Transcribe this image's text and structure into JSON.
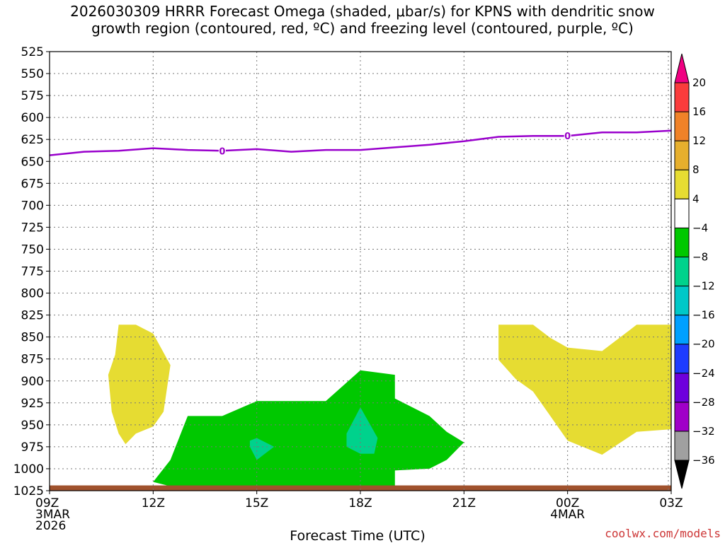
{
  "title_line1": "2026030309 HRRR Forecast Omega (shaded, μbar/s) for KPNS with dendritic snow",
  "title_line2": "growth region (contoured, red, ºC) and freezing level (contoured, purple, ºC)",
  "credit": "coolwx.com/models",
  "chart_data": {
    "type": "area",
    "xlabel": "Forecast Time (UTC)",
    "x_range_hours": [
      0,
      18
    ],
    "y_range_hpa": [
      525,
      1025
    ],
    "y_inverted": true,
    "grid": true,
    "y_ticks": [
      525,
      550,
      575,
      600,
      625,
      650,
      675,
      700,
      725,
      750,
      775,
      800,
      825,
      850,
      875,
      900,
      925,
      950,
      975,
      1000,
      1025
    ],
    "x_ticks": [
      {
        "hour": 0,
        "lines": [
          "09Z",
          "3MAR",
          "2026"
        ]
      },
      {
        "hour": 3,
        "lines": [
          "12Z"
        ]
      },
      {
        "hour": 6,
        "lines": [
          "15Z"
        ]
      },
      {
        "hour": 9,
        "lines": [
          "18Z"
        ]
      },
      {
        "hour": 12,
        "lines": [
          "21Z"
        ]
      },
      {
        "hour": 15,
        "lines": [
          "00Z",
          "4MAR"
        ]
      },
      {
        "hour": 18,
        "lines": [
          "03Z"
        ]
      }
    ],
    "freezing_level": {
      "label": "0",
      "color": "#9900cc",
      "label_points": [
        [
          5.0,
          638
        ],
        [
          15.0,
          621
        ]
      ],
      "points": [
        [
          0,
          643
        ],
        [
          1,
          639
        ],
        [
          2,
          638
        ],
        [
          3,
          635
        ],
        [
          4,
          637
        ],
        [
          5,
          638
        ],
        [
          6,
          636
        ],
        [
          7,
          639
        ],
        [
          8,
          637
        ],
        [
          9,
          637
        ],
        [
          10,
          634
        ],
        [
          11,
          631
        ],
        [
          12,
          627
        ],
        [
          13,
          622
        ],
        [
          14,
          621
        ],
        [
          15,
          621
        ],
        [
          16,
          617
        ],
        [
          17,
          617
        ],
        [
          18,
          615
        ]
      ]
    },
    "omega_regions": [
      {
        "value_range": [
          4,
          8
        ],
        "color": "#e6dc32",
        "points": [
          [
            2.0,
            836
          ],
          [
            2.5,
            836
          ],
          [
            3.0,
            846
          ],
          [
            3.5,
            882
          ],
          [
            3.3,
            935
          ],
          [
            3.0,
            952
          ],
          [
            2.5,
            960
          ],
          [
            2.2,
            972
          ],
          [
            2.0,
            960
          ],
          [
            1.8,
            935
          ],
          [
            1.7,
            893
          ],
          [
            1.9,
            870
          ]
        ]
      },
      {
        "value_range": [
          4,
          8
        ],
        "color": "#e6dc32",
        "points": [
          [
            13.0,
            836
          ],
          [
            14.0,
            836
          ],
          [
            14.5,
            851
          ],
          [
            15.0,
            862
          ],
          [
            16.0,
            866
          ],
          [
            17.0,
            836
          ],
          [
            18.0,
            836
          ],
          [
            18.0,
            955
          ],
          [
            17.0,
            958
          ],
          [
            16.0,
            984
          ],
          [
            15.0,
            968
          ],
          [
            14.5,
            940
          ],
          [
            14.0,
            912
          ],
          [
            13.5,
            898
          ],
          [
            13.0,
            876
          ]
        ]
      },
      {
        "value_range": [
          -8,
          -4
        ],
        "color": "#00c800",
        "points": [
          [
            3.0,
            1015
          ],
          [
            3.5,
            990
          ],
          [
            4.0,
            940
          ],
          [
            5.0,
            940
          ],
          [
            6.0,
            923
          ],
          [
            7.0,
            923
          ],
          [
            8.0,
            923
          ],
          [
            9.0,
            888
          ],
          [
            10.0,
            893
          ],
          [
            10.0,
            920
          ],
          [
            11.0,
            940
          ],
          [
            11.5,
            958
          ],
          [
            12.0,
            970
          ],
          [
            11.5,
            990
          ],
          [
            11.0,
            1000
          ],
          [
            10.0,
            1002
          ],
          [
            10.0,
            1020
          ],
          [
            9.0,
            1020
          ],
          [
            8.0,
            1020
          ],
          [
            7.0,
            1020
          ],
          [
            6.0,
            1020
          ],
          [
            5.0,
            1020
          ],
          [
            4.0,
            1020
          ],
          [
            3.5,
            1020
          ]
        ]
      },
      {
        "value_range": [
          -12,
          -8
        ],
        "color": "#00d28c",
        "points": [
          [
            5.8,
            968
          ],
          [
            6.0,
            965
          ],
          [
            6.5,
            975
          ],
          [
            6.0,
            990
          ],
          [
            5.8,
            975
          ]
        ]
      },
      {
        "value_range": [
          -12,
          -8
        ],
        "color": "#00d28c",
        "points": [
          [
            8.6,
            960
          ],
          [
            9.0,
            930
          ],
          [
            9.5,
            965
          ],
          [
            9.4,
            983
          ],
          [
            9.0,
            983
          ],
          [
            8.6,
            975
          ]
        ]
      }
    ],
    "terrain": {
      "color": "#a0522d",
      "top_hpa": 1019
    },
    "colorbar": {
      "levels": [
        -36,
        -32,
        -28,
        -24,
        -20,
        -16,
        -12,
        -8,
        -4,
        4,
        8,
        12,
        16,
        20
      ],
      "colors": [
        "#000000",
        "#a0a0a0",
        "#a000c8",
        "#6e00dc",
        "#1e3cff",
        "#00a0ff",
        "#00c8c8",
        "#00d28c",
        "#00c800",
        "#ffffff",
        "#e6dc32",
        "#e6af2d",
        "#f08228",
        "#fa3c3c",
        "#f00082"
      ]
    }
  }
}
